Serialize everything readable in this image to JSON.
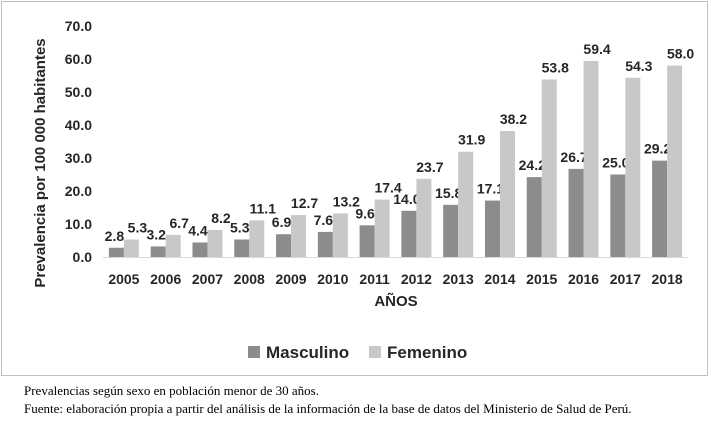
{
  "chart_data": {
    "type": "bar",
    "categories": [
      "2005",
      "2006",
      "2007",
      "2008",
      "2009",
      "2010",
      "2011",
      "2012",
      "2013",
      "2014",
      "2015",
      "2016",
      "2017",
      "2018"
    ],
    "series": [
      {
        "name": "Masculino",
        "color": "#8c8c8c",
        "values": [
          2.8,
          3.2,
          4.4,
          5.3,
          6.9,
          7.6,
          9.6,
          14.0,
          15.8,
          17.1,
          24.2,
          26.7,
          25.0,
          29.2
        ]
      },
      {
        "name": "Femenino",
        "color": "#c8c8c8",
        "values": [
          5.3,
          6.7,
          8.2,
          11.1,
          12.7,
          13.2,
          17.4,
          23.7,
          31.9,
          38.2,
          53.8,
          59.4,
          54.3,
          58.0
        ]
      }
    ],
    "xlabel": "AÑOS",
    "ylabel": "Prevalencia por 100 000 habitantes",
    "ylim": [
      0,
      70
    ],
    "yticks": [
      "0.0",
      "10.0",
      "20.0",
      "30.0",
      "40.0",
      "50.0",
      "60.0",
      "70.0"
    ],
    "grid": false,
    "legend_position": "bottom"
  },
  "notes": {
    "line1": "Prevalencias según sexo en población menor de 30 años.",
    "line2": "Fuente: elaboración propia a partir del análisis de la información de la base de datos del Ministerio de Salud de Perú."
  }
}
